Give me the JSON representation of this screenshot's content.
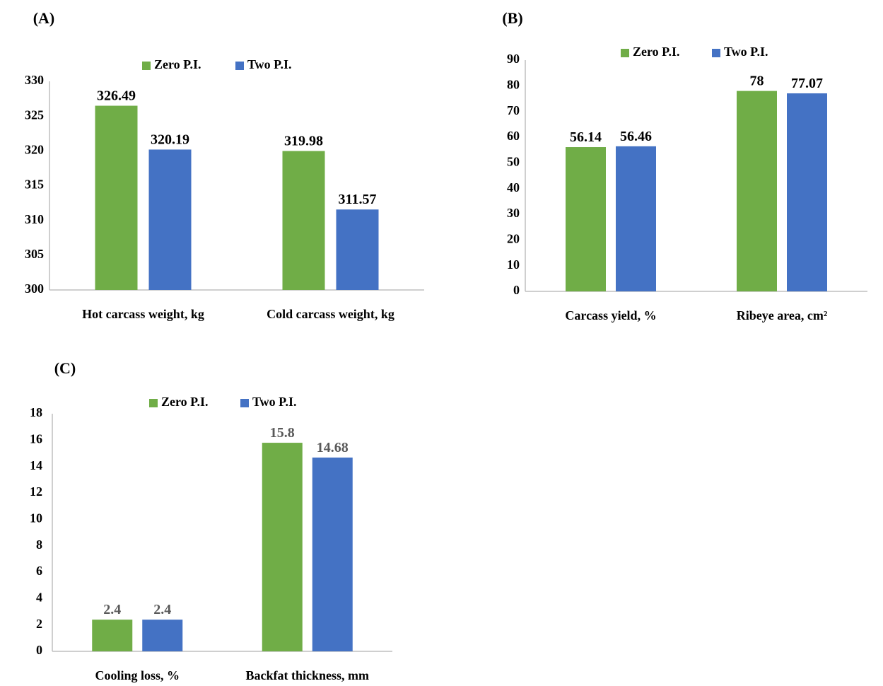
{
  "chart_data": [
    {
      "type": "bar",
      "panel_label": "(A)",
      "categories": [
        "Hot carcass weight, kg",
        "Cold carcass weight, kg"
      ],
      "series": [
        {
          "name": "Zero P.I.",
          "values": [
            326.49,
            319.98
          ],
          "labels": [
            "326.49",
            "319.98"
          ]
        },
        {
          "name": "Two P.I.",
          "values": [
            320.19,
            311.57
          ],
          "labels": [
            "320.19",
            "311.57"
          ]
        }
      ],
      "ylim": [
        300,
        330
      ],
      "yticks": [
        "300",
        "305",
        "310",
        "315",
        "320",
        "325",
        "330"
      ],
      "title": "",
      "xlabel": "",
      "ylabel": "",
      "legend": "top",
      "grid": false,
      "value_label_color": "#000000"
    },
    {
      "type": "bar",
      "panel_label": "(B)",
      "categories": [
        "Carcass yield, %",
        "Ribeye area, cm²"
      ],
      "series": [
        {
          "name": "Zero P.I.",
          "values": [
            56.14,
            78
          ],
          "labels": [
            "56.14",
            "78"
          ]
        },
        {
          "name": "Two P.I.",
          "values": [
            56.46,
            77.07
          ],
          "labels": [
            "56.46",
            "77.07"
          ]
        }
      ],
      "ylim": [
        0,
        90
      ],
      "yticks": [
        "0",
        "10",
        "20",
        "30",
        "40",
        "50",
        "60",
        "70",
        "80",
        "90"
      ],
      "title": "",
      "xlabel": "",
      "ylabel": "",
      "legend": "top-right",
      "grid": false,
      "value_label_color": "#000000"
    },
    {
      "type": "bar",
      "panel_label": "(C)",
      "categories": [
        "Cooling loss, %",
        "Backfat thickness, mm"
      ],
      "series": [
        {
          "name": "Zero P.I.",
          "values": [
            2.4,
            15.8
          ],
          "labels": [
            "2.4",
            "15.8"
          ]
        },
        {
          "name": "Two P.I.",
          "values": [
            2.4,
            14.68
          ],
          "labels": [
            "2.4",
            "14.68"
          ]
        }
      ],
      "ylim": [
        0,
        18
      ],
      "yticks": [
        "0",
        "2",
        "4",
        "6",
        "8",
        "10",
        "12",
        "14",
        "16",
        "18"
      ],
      "title": "",
      "xlabel": "",
      "ylabel": "",
      "legend": "top",
      "grid": false,
      "value_label_color": "#595959"
    }
  ],
  "colors": {
    "Zero P.I.": "#70ad47",
    "Two P.I.": "#4472c4",
    "axis": "#bfbfbf",
    "text": "#000000"
  }
}
